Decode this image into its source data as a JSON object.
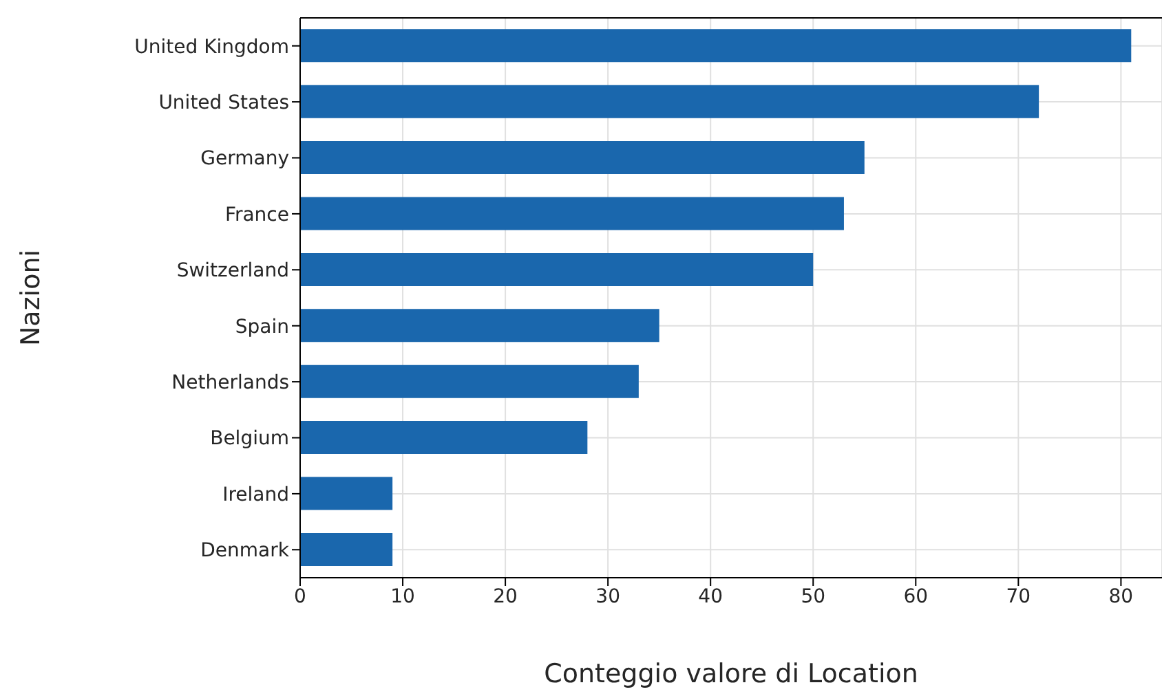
{
  "chart_data": {
    "type": "bar",
    "orientation": "horizontal",
    "xlabel": "Conteggio valore di Location",
    "ylabel": "Nazioni",
    "categories": [
      "United Kingdom",
      "United States",
      "Germany",
      "France",
      "Switzerland",
      "Spain",
      "Netherlands",
      "Belgium",
      "Ireland",
      "Denmark"
    ],
    "values": [
      81,
      72,
      55,
      53,
      50,
      35,
      33,
      28,
      9,
      9
    ],
    "color": "#1a67ad",
    "xlim": [
      0,
      84
    ],
    "xticks": [
      0,
      10,
      20,
      30,
      40,
      50,
      60,
      70,
      80
    ],
    "grid": true
  }
}
